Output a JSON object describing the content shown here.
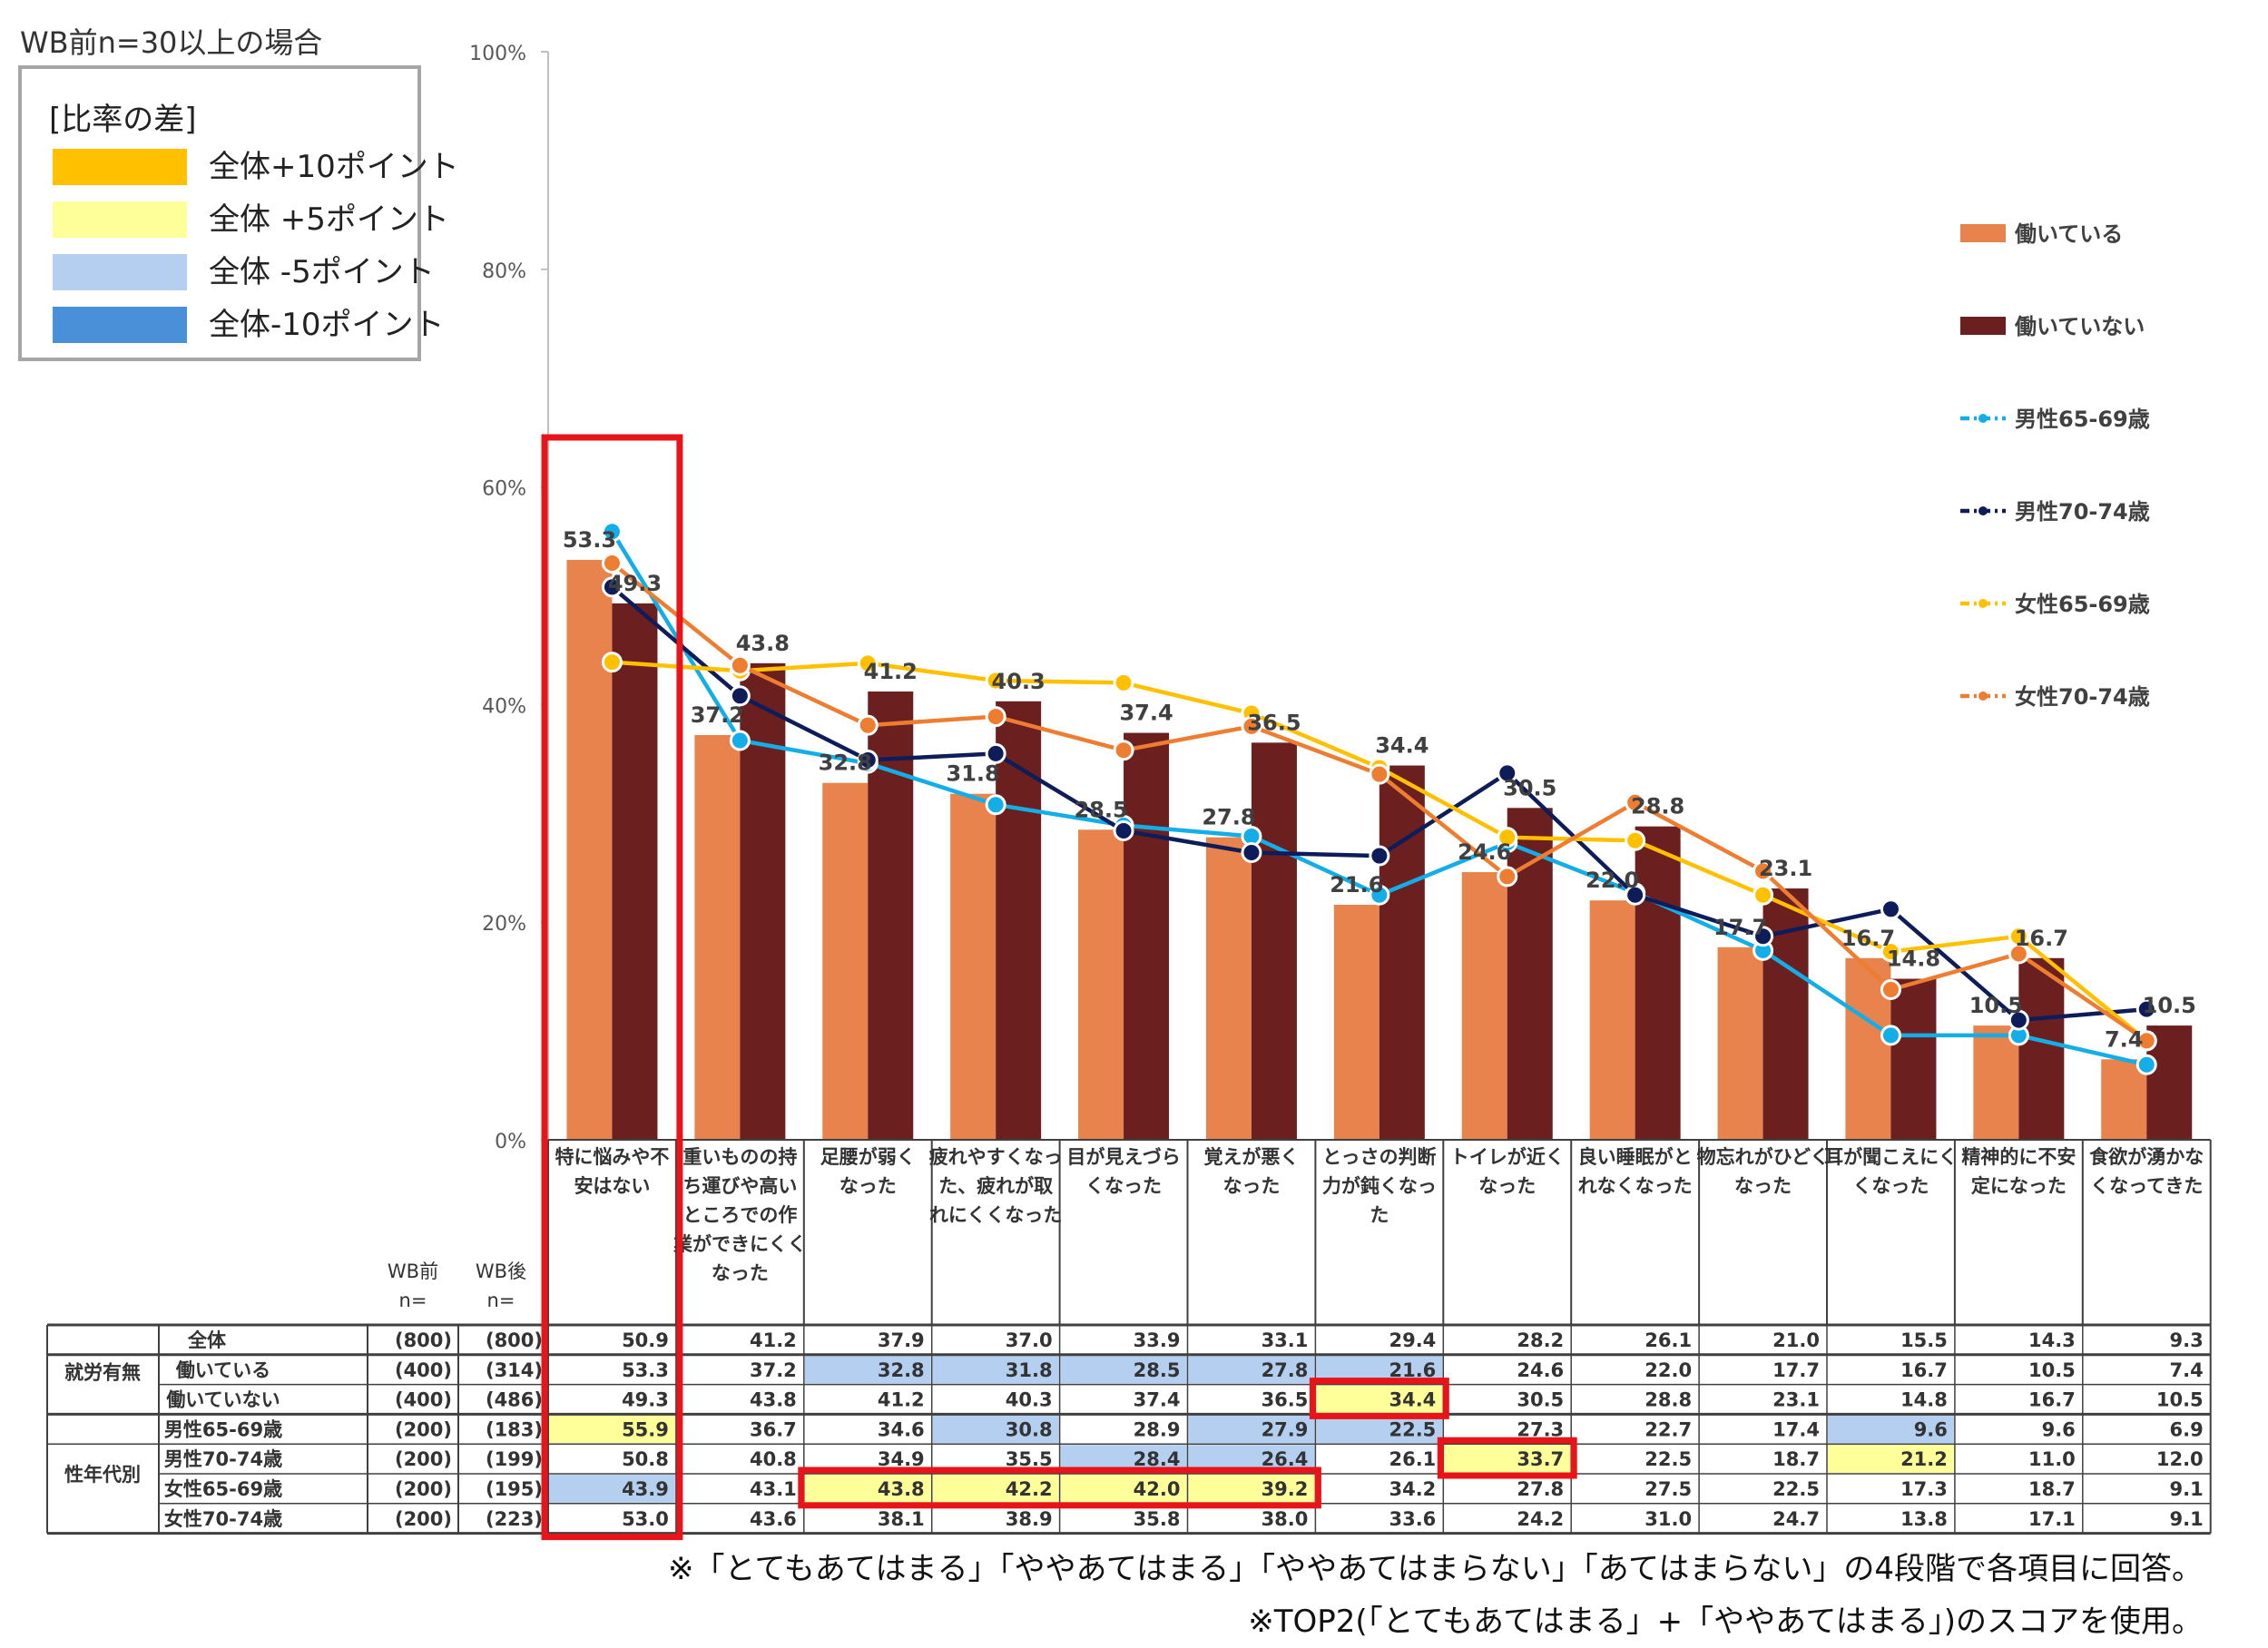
{
  "header": {
    "wb_note": "WB前n=30以上の場合"
  },
  "diff_key": {
    "heading": "[比率の差]",
    "items": [
      {
        "label": "全体+10ポイント",
        "color": "#ffc000"
      },
      {
        "label": "全体 +5ポイント",
        "color": "#ffff99"
      },
      {
        "label": "全体 -5ポイント",
        "color": "#b4cff0"
      },
      {
        "label": "全体-10ポイント",
        "color": "#4a90d9"
      }
    ]
  },
  "chart_data": {
    "type": "bar",
    "ylim": [
      0,
      100
    ],
    "yticks": [
      "0%",
      "20%",
      "40%",
      "60%",
      "80%",
      "100%"
    ],
    "categories": [
      "特に悩みや不安はない",
      "重いものの持ち運びや高いところでの作業ができにくくなった",
      "足腰が弱くなった",
      "疲れやすくなった、疲れが取れにくくなった",
      "目が見えづらくなった",
      "覚えが悪くなった",
      "とっさの判断力が鈍くなった",
      "トイレが近くなった",
      "良い睡眠がとれなくなった",
      "物忘れがひどくなった",
      "耳が聞こえにくくなった",
      "精神的に不安定になった",
      "食欲が湧かなくなってきた"
    ],
    "category_lines": [
      [
        "特に悩みや不",
        "安はない"
      ],
      [
        "重いものの持",
        "ち運びや高い",
        "ところでの作",
        "業ができにくく",
        "なった"
      ],
      [
        "足腰が弱く",
        "なった"
      ],
      [
        "疲れやすくなっ",
        "た、疲れが取",
        "れにくくなった"
      ],
      [
        "目が見えづら",
        "くなった"
      ],
      [
        "覚えが悪く",
        "なった"
      ],
      [
        "とっさの判断",
        "力が鈍くなっ",
        "た"
      ],
      [
        "トイレが近く",
        "なった"
      ],
      [
        "良い睡眠がと",
        "れなくなった"
      ],
      [
        "物忘れがひどく",
        "なった"
      ],
      [
        "耳が聞こえにく",
        "くなった"
      ],
      [
        "精神的に不安",
        "定になった"
      ],
      [
        "食欲が湧かな",
        "くなってきた"
      ]
    ],
    "bar_series": [
      {
        "name": "働いている",
        "color": "#e8834d",
        "values": [
          53.3,
          37.2,
          32.8,
          31.8,
          28.5,
          27.8,
          21.6,
          24.6,
          22.0,
          17.7,
          16.7,
          10.5,
          7.4
        ]
      },
      {
        "name": "働いていない",
        "color": "#6b1f1f",
        "values": [
          49.3,
          43.8,
          41.2,
          40.3,
          37.4,
          36.5,
          34.4,
          30.5,
          28.8,
          23.1,
          14.8,
          16.7,
          10.5
        ]
      }
    ],
    "bar_labels": [
      [
        "53.3",
        "37.2",
        "32.8",
        "31.8",
        "28.5",
        "27.8",
        "21.6",
        "24.6",
        "22.0",
        "17.7",
        "16.7",
        "10.5",
        "7.4"
      ],
      [
        "49.3",
        "43.8",
        "41.2",
        "40.3",
        "37.4",
        "36.5",
        "34.4",
        "30.5",
        "28.8",
        "23.1",
        "14.8",
        "16.7",
        "10.5"
      ]
    ],
    "line_series": [
      {
        "name": "男性65-69歳",
        "color": "#13aee8",
        "values": [
          55.9,
          36.7,
          34.6,
          30.8,
          28.9,
          27.9,
          22.5,
          27.3,
          22.7,
          17.4,
          9.6,
          9.6,
          6.9
        ]
      },
      {
        "name": "男性70-74歳",
        "color": "#0e1d5a",
        "values": [
          50.8,
          40.8,
          34.9,
          35.5,
          28.4,
          26.4,
          26.1,
          33.7,
          22.5,
          18.7,
          21.2,
          11.0,
          12.0
        ]
      },
      {
        "name": "女性65-69歳",
        "color": "#ffc000",
        "values": [
          43.9,
          43.1,
          43.8,
          42.2,
          42.0,
          39.2,
          34.2,
          27.8,
          27.5,
          22.5,
          17.3,
          18.7,
          9.1
        ]
      },
      {
        "name": "女性70-74歳",
        "color": "#ed7d31",
        "values": [
          53.0,
          43.6,
          38.1,
          38.9,
          35.8,
          38.0,
          33.6,
          24.2,
          31.0,
          24.7,
          13.8,
          17.1,
          9.1
        ]
      }
    ],
    "legend": [
      "働いている",
      "働いていない",
      "男性65-69歳",
      "男性70-74歳",
      "女性65-69歳",
      "女性70-74歳"
    ],
    "legend_position": "right"
  },
  "table": {
    "head_wb_before": [
      "WB前",
      "n="
    ],
    "head_wb_after": [
      "WB後",
      "n="
    ],
    "group_labels": [
      "就労有無",
      "性年代別"
    ],
    "rows": [
      {
        "label": "全体",
        "n_before": "(800)",
        "n_after": "(800)",
        "values": [
          "50.9",
          "41.2",
          "37.9",
          "37.0",
          "33.9",
          "33.1",
          "29.4",
          "28.2",
          "26.1",
          "21.0",
          "15.5",
          "14.3",
          "9.3"
        ],
        "hl": [
          "",
          "",
          "",
          "",
          "",
          "",
          "",
          "",
          "",
          "",
          "",
          "",
          ""
        ]
      },
      {
        "label": "働いている",
        "n_before": "(400)",
        "n_after": "(314)",
        "values": [
          "53.3",
          "37.2",
          "32.8",
          "31.8",
          "28.5",
          "27.8",
          "21.6",
          "24.6",
          "22.0",
          "17.7",
          "16.7",
          "10.5",
          "7.4"
        ],
        "hl": [
          "",
          "",
          "lb",
          "lb",
          "lb",
          "lb",
          "lb",
          "",
          "",
          "",
          "",
          "",
          ""
        ]
      },
      {
        "label": "働いていない",
        "n_before": "(400)",
        "n_after": "(486)",
        "values": [
          "49.3",
          "43.8",
          "41.2",
          "40.3",
          "37.4",
          "36.5",
          "34.4",
          "30.5",
          "28.8",
          "23.1",
          "14.8",
          "16.7",
          "10.5"
        ],
        "hl": [
          "",
          "",
          "",
          "",
          "",
          "",
          "ly",
          "",
          "",
          "",
          "",
          "",
          ""
        ]
      },
      {
        "label": "男性65-69歳",
        "n_before": "(200)",
        "n_after": "(183)",
        "values": [
          "55.9",
          "36.7",
          "34.6",
          "30.8",
          "28.9",
          "27.9",
          "22.5",
          "27.3",
          "22.7",
          "17.4",
          "9.6",
          "9.6",
          "6.9"
        ],
        "hl": [
          "ly",
          "",
          "",
          "lb",
          "",
          "lb",
          "lb",
          "",
          "",
          "",
          "lb",
          "",
          ""
        ]
      },
      {
        "label": "男性70-74歳",
        "n_before": "(200)",
        "n_after": "(199)",
        "values": [
          "50.8",
          "40.8",
          "34.9",
          "35.5",
          "28.4",
          "26.4",
          "26.1",
          "33.7",
          "22.5",
          "18.7",
          "21.2",
          "11.0",
          "12.0"
        ],
        "hl": [
          "",
          "",
          "",
          "",
          "lb",
          "lb",
          "",
          "ly",
          "",
          "",
          "ly",
          "",
          ""
        ]
      },
      {
        "label": "女性65-69歳",
        "n_before": "(200)",
        "n_after": "(195)",
        "values": [
          "43.9",
          "43.1",
          "43.8",
          "42.2",
          "42.0",
          "39.2",
          "34.2",
          "27.8",
          "27.5",
          "22.5",
          "17.3",
          "18.7",
          "9.1"
        ],
        "hl": [
          "lb",
          "",
          "ly",
          "ly",
          "ly",
          "ly",
          "",
          "",
          "",
          "",
          "",
          "",
          ""
        ]
      },
      {
        "label": "女性70-74歳",
        "n_before": "(200)",
        "n_after": "(223)",
        "values": [
          "53.0",
          "43.6",
          "38.1",
          "38.9",
          "35.8",
          "38.0",
          "33.6",
          "24.2",
          "31.0",
          "24.7",
          "13.8",
          "17.1",
          "9.1"
        ],
        "hl": [
          "",
          "",
          "",
          "",
          "",
          "",
          "",
          "",
          "",
          "",
          "",
          "",
          ""
        ]
      }
    ]
  },
  "footnotes": [
    "※「とてもあてはまる」「ややあてはまる」「ややあてはまらない」「あてはまらない」の4段階で各項目に回答。",
    "※TOP2(「とてもあてはまる」+「ややあてはまる」)のスコアを使用。"
  ]
}
